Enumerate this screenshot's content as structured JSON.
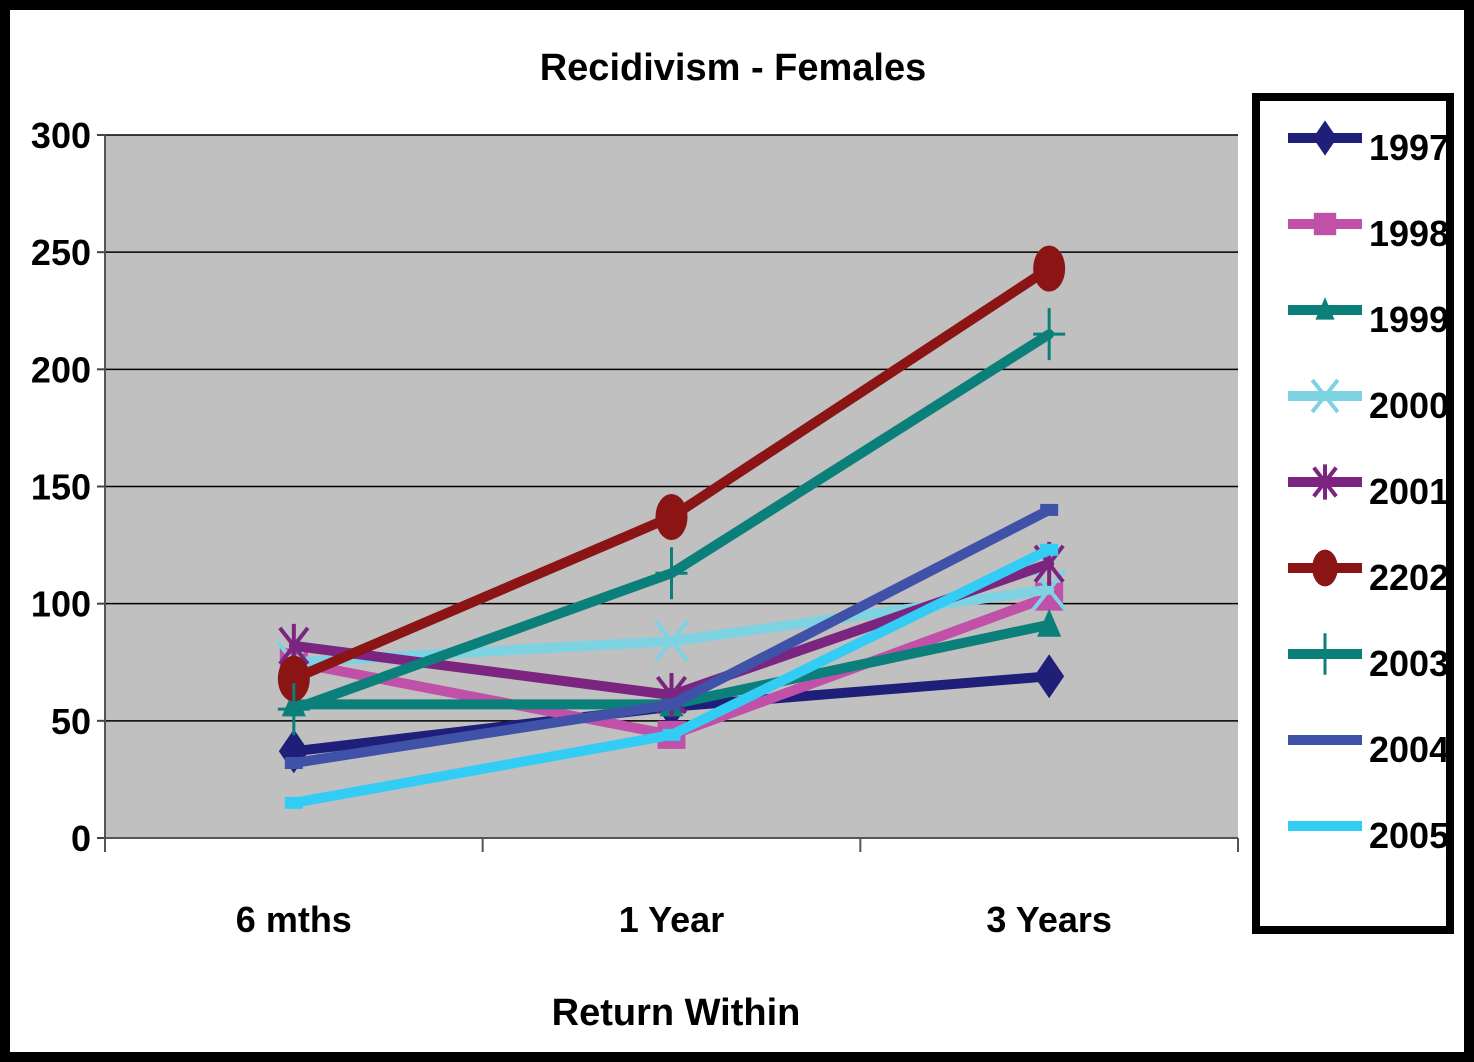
{
  "chart_data": {
    "type": "line",
    "title": "Recidivism - Females",
    "xlabel": "Return Within",
    "ylabel": "",
    "categories": [
      "6 mths",
      "1 Year",
      "3 Years"
    ],
    "ylim": [
      0,
      300
    ],
    "yticks": [
      0,
      50,
      100,
      150,
      200,
      250,
      300
    ],
    "grid": true,
    "legend": "right",
    "plot_background": "#c0c0c0",
    "series": [
      {
        "name": "1997",
        "values": [
          37,
          56,
          69
        ],
        "color": "#1f1f7a",
        "marker": "diamond"
      },
      {
        "name": "1998",
        "values": [
          75,
          44,
          103
        ],
        "color": "#c050a8",
        "marker": "square"
      },
      {
        "name": "1999",
        "values": [
          57,
          57,
          91
        ],
        "color": "#0b7f7a",
        "marker": "triangle"
      },
      {
        "name": "2000",
        "values": [
          75,
          84,
          106
        ],
        "color": "#7ed3e3",
        "marker": "x"
      },
      {
        "name": "2001",
        "values": [
          82,
          61,
          117
        ],
        "color": "#7b2480",
        "marker": "asterisk"
      },
      {
        "name": "2202",
        "values": [
          68,
          137,
          243
        ],
        "color": "#8b1414",
        "marker": "circle"
      },
      {
        "name": "2003",
        "values": [
          55,
          113,
          215
        ],
        "color": "#0b7f7a",
        "marker": "plus"
      },
      {
        "name": "2004",
        "values": [
          32,
          57,
          140
        ],
        "color": "#3f52a8",
        "marker": "dash"
      },
      {
        "name": "2005",
        "values": [
          15,
          44,
          123
        ],
        "color": "#33ccf5",
        "marker": "dash"
      }
    ]
  }
}
